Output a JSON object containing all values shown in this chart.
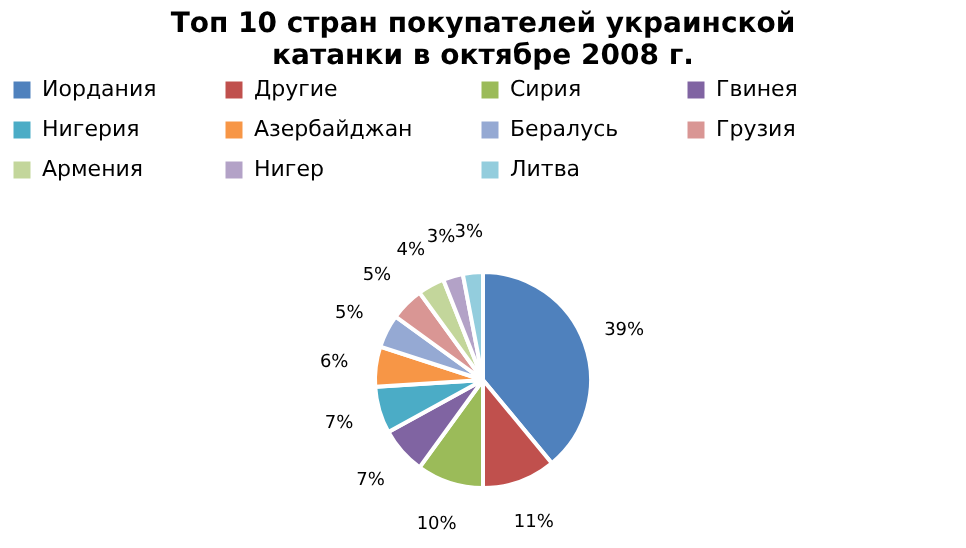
{
  "chart_data": {
    "type": "pie",
    "title": "Топ 10 стран покупателей украинской катанки в октябре 2008 г.",
    "categories": [
      "Иордания",
      "Другие",
      "Сирия",
      "Гвинея",
      "Нигерия",
      "Азербайджан",
      "Бералусь",
      "Грузия",
      "Армения",
      "Нигер",
      "Литва"
    ],
    "values": [
      39,
      11,
      10,
      7,
      7,
      6,
      5,
      5,
      4,
      3,
      3
    ],
    "value_labels": [
      "39%",
      "11%",
      "10%",
      "7%",
      "7%",
      "6%",
      "5%",
      "5%",
      "4%",
      "3%",
      "3%"
    ],
    "colors": [
      "#4f81bd",
      "#c0504d",
      "#9bbb59",
      "#8064a2",
      "#4bacc6",
      "#f79646",
      "#95a9d3",
      "#d99694",
      "#c3d69b",
      "#b3a2c7",
      "#93cddd"
    ],
    "legend": "top"
  }
}
